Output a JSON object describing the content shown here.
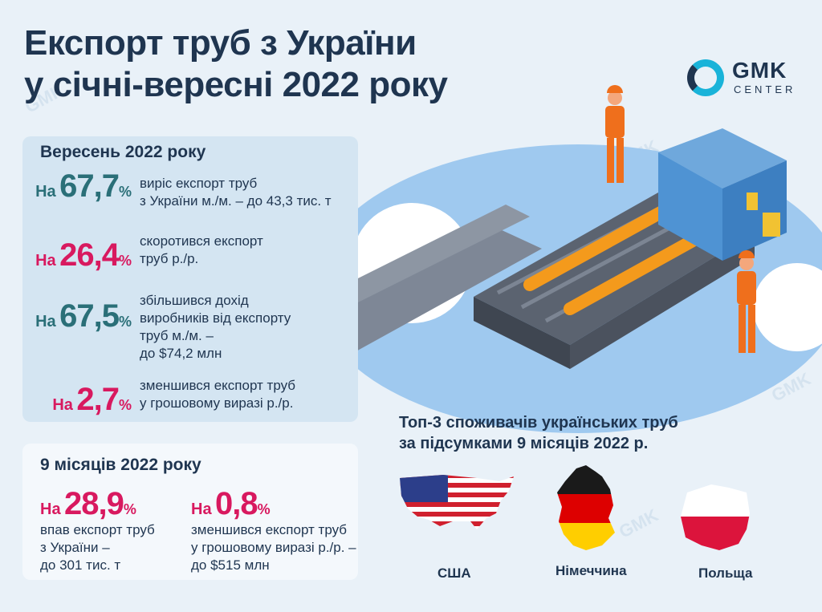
{
  "title": {
    "line1": "Експорт труб з України",
    "line2": "у січні-вересні 2022 року"
  },
  "logo": {
    "brand": "GMK",
    "sub": "CENTER"
  },
  "september": {
    "heading": "Вересень 2022 року",
    "stats": [
      {
        "prefix": "На",
        "value": "67,7",
        "unit": "%",
        "desc": [
          "виріс експорт труб",
          "з України м./м. – до 43,3 тис. т"
        ]
      },
      {
        "prefix": "На",
        "value": "26,4",
        "unit": "%",
        "desc": [
          "скоротився експорт",
          "труб р./р."
        ]
      },
      {
        "prefix": "На",
        "value": "67,5",
        "unit": "%",
        "desc": [
          "збільшився дохід",
          "виробників від експорту",
          "труб м./м. –",
          "до $74,2 млн"
        ]
      },
      {
        "prefix": "На",
        "value": "2,7",
        "unit": "%",
        "desc": [
          "зменшився експорт труб",
          "у грошовому виразі р./р."
        ]
      }
    ]
  },
  "nine_months": {
    "heading": "9 місяців 2022 року",
    "stats": [
      {
        "prefix": "На",
        "value": "28,9",
        "unit": "%",
        "desc": [
          "впав експорт труб",
          "з України –",
          "до 301 тис. т"
        ]
      },
      {
        "prefix": "На",
        "value": "0,8",
        "unit": "%",
        "desc": [
          "зменшився експорт труб",
          "у грошовому виразі р./р. –",
          "до $515 млн"
        ]
      }
    ]
  },
  "top3": {
    "heading_line1": "Топ-3 споживачів українських труб",
    "heading_line2": "за підсумками 9 місяців 2022 р.",
    "countries": [
      "США",
      "Німеччина",
      "Польща"
    ]
  },
  "colors": {
    "teal": "#2a6f78",
    "pink": "#d8195f",
    "navy": "#1f3550",
    "accent": "#19b3d9"
  }
}
